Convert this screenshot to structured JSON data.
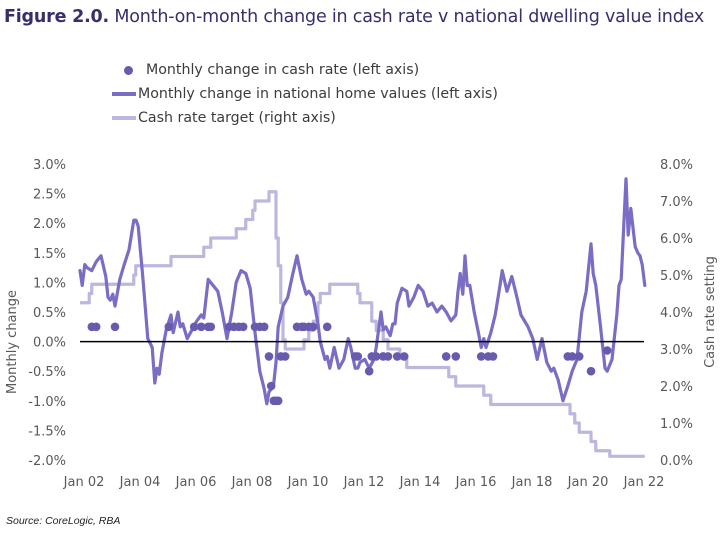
{
  "title": {
    "figure_label": "Figure 2.0.",
    "text": "Month-on-month change in cash rate v national dwelling value index"
  },
  "colors": {
    "title": "#3a2d6e",
    "cash_rate_change_dots": "#6a5aad",
    "home_values_line": "#7b6cc6",
    "cash_rate_target_line": "#bdb7df",
    "zero_line": "#000000",
    "axis_text": "#595959"
  },
  "legend": [
    {
      "key": "cash_rate_change",
      "label": "Monthly change in cash rate (left axis)",
      "marker": "dot"
    },
    {
      "key": "home_values",
      "label": "Monthly change in national home values (left axis)",
      "marker": "line"
    },
    {
      "key": "cash_rate_target",
      "label": "Cash rate target (right axis)",
      "marker": "line"
    }
  ],
  "source": "Source:  CoreLogic, RBA",
  "chart_data": {
    "type": "line",
    "title": "Month-on-month change in cash rate v national dwelling value index",
    "xlabel": "",
    "ylabel_left": "Monthly change",
    "ylabel_right": "Cash rate setting",
    "x_range": [
      2002.0,
      2022.0
    ],
    "x_ticks": [
      {
        "value": 2002,
        "label": "Jan 02"
      },
      {
        "value": 2004,
        "label": "Jan 04"
      },
      {
        "value": 2006,
        "label": "Jan 06"
      },
      {
        "value": 2008,
        "label": "Jan 08"
      },
      {
        "value": 2010,
        "label": "Jan 10"
      },
      {
        "value": 2012,
        "label": "Jan 12"
      },
      {
        "value": 2014,
        "label": "Jan 14"
      },
      {
        "value": 2016,
        "label": "Jan 16"
      },
      {
        "value": 2018,
        "label": "Jan 18"
      },
      {
        "value": 2020,
        "label": "Jan 20"
      },
      {
        "value": 2022,
        "label": "Jan 22"
      }
    ],
    "ylim_left": [
      -2.0,
      3.0
    ],
    "y_ticks_left": [
      "-2.0%",
      "-1.5%",
      "-1.0%",
      "-0.5%",
      "0.0%",
      "0.5%",
      "1.0%",
      "1.5%",
      "2.0%",
      "2.5%",
      "3.0%"
    ],
    "y_tick_values_left": [
      -2.0,
      -1.5,
      -1.0,
      -0.5,
      0.0,
      0.5,
      1.0,
      1.5,
      2.0,
      2.5,
      3.0
    ],
    "ylim_right": [
      0.0,
      8.0
    ],
    "y_ticks_right": [
      "0.0%",
      "1.0%",
      "2.0%",
      "3.0%",
      "4.0%",
      "5.0%",
      "6.0%",
      "7.0%",
      "8.0%"
    ],
    "y_tick_values_right": [
      0,
      1,
      2,
      3,
      4,
      5,
      6,
      7,
      8
    ],
    "grid": false,
    "zero_line": true,
    "legend_position": "top-center",
    "series": [
      {
        "name": "Monthly change in national home values (left axis)",
        "axis": "left",
        "type": "line",
        "points": [
          [
            2002.0,
            1.2
          ],
          [
            2002.08,
            0.95
          ],
          [
            2002.17,
            1.3
          ],
          [
            2002.25,
            1.25
          ],
          [
            2002.42,
            1.2
          ],
          [
            2002.58,
            1.35
          ],
          [
            2002.75,
            1.45
          ],
          [
            2002.92,
            1.1
          ],
          [
            2003.0,
            0.75
          ],
          [
            2003.08,
            0.7
          ],
          [
            2003.17,
            0.8
          ],
          [
            2003.25,
            0.6
          ],
          [
            2003.42,
            1.05
          ],
          [
            2003.58,
            1.3
          ],
          [
            2003.75,
            1.55
          ],
          [
            2003.92,
            2.05
          ],
          [
            2004.0,
            2.05
          ],
          [
            2004.08,
            1.95
          ],
          [
            2004.25,
            1.05
          ],
          [
            2004.42,
            0.05
          ],
          [
            2004.58,
            -0.1
          ],
          [
            2004.67,
            -0.7
          ],
          [
            2004.75,
            -0.45
          ],
          [
            2004.83,
            -0.55
          ],
          [
            2004.92,
            -0.2
          ],
          [
            2005.08,
            0.2
          ],
          [
            2005.25,
            0.45
          ],
          [
            2005.33,
            0.15
          ],
          [
            2005.5,
            0.5
          ],
          [
            2005.58,
            0.25
          ],
          [
            2005.67,
            0.3
          ],
          [
            2005.83,
            0.05
          ],
          [
            2006.0,
            0.2
          ],
          [
            2006.17,
            0.35
          ],
          [
            2006.33,
            0.45
          ],
          [
            2006.42,
            0.4
          ],
          [
            2006.58,
            1.05
          ],
          [
            2006.75,
            0.95
          ],
          [
            2006.92,
            0.85
          ],
          [
            2007.08,
            0.5
          ],
          [
            2007.25,
            0.05
          ],
          [
            2007.42,
            0.5
          ],
          [
            2007.58,
            1.0
          ],
          [
            2007.75,
            1.2
          ],
          [
            2007.92,
            1.15
          ],
          [
            2008.08,
            0.9
          ],
          [
            2008.25,
            0.15
          ],
          [
            2008.42,
            -0.5
          ],
          [
            2008.58,
            -0.8
          ],
          [
            2008.67,
            -1.05
          ],
          [
            2008.75,
            -0.85
          ],
          [
            2008.83,
            -0.8
          ],
          [
            2008.92,
            -0.7
          ],
          [
            2009.0,
            -0.35
          ],
          [
            2009.08,
            0.25
          ],
          [
            2009.25,
            0.6
          ],
          [
            2009.42,
            0.75
          ],
          [
            2009.58,
            1.1
          ],
          [
            2009.75,
            1.45
          ],
          [
            2009.92,
            1.05
          ],
          [
            2010.08,
            0.8
          ],
          [
            2010.17,
            0.85
          ],
          [
            2010.33,
            0.75
          ],
          [
            2010.5,
            0.3
          ],
          [
            2010.58,
            0.0
          ],
          [
            2010.75,
            -0.3
          ],
          [
            2010.83,
            -0.25
          ],
          [
            2010.92,
            -0.45
          ],
          [
            2011.08,
            -0.1
          ],
          [
            2011.25,
            -0.45
          ],
          [
            2011.42,
            -0.3
          ],
          [
            2011.58,
            0.05
          ],
          [
            2011.67,
            -0.1
          ],
          [
            2011.83,
            -0.45
          ],
          [
            2011.92,
            -0.45
          ],
          [
            2012.0,
            -0.35
          ],
          [
            2012.17,
            -0.3
          ],
          [
            2012.33,
            -0.45
          ],
          [
            2012.5,
            -0.3
          ],
          [
            2012.58,
            -0.1
          ],
          [
            2012.75,
            0.5
          ],
          [
            2012.83,
            0.2
          ],
          [
            2012.92,
            0.25
          ],
          [
            2013.08,
            0.1
          ],
          [
            2013.17,
            0.3
          ],
          [
            2013.25,
            0.3
          ],
          [
            2013.33,
            0.65
          ],
          [
            2013.5,
            0.9
          ],
          [
            2013.67,
            0.85
          ],
          [
            2013.75,
            0.6
          ],
          [
            2013.92,
            0.75
          ],
          [
            2014.08,
            0.95
          ],
          [
            2014.25,
            0.85
          ],
          [
            2014.42,
            0.6
          ],
          [
            2014.58,
            0.65
          ],
          [
            2014.75,
            0.5
          ],
          [
            2014.92,
            0.6
          ],
          [
            2015.08,
            0.5
          ],
          [
            2015.25,
            0.35
          ],
          [
            2015.42,
            0.45
          ],
          [
            2015.5,
            0.85
          ],
          [
            2015.58,
            1.15
          ],
          [
            2015.67,
            0.8
          ],
          [
            2015.75,
            1.45
          ],
          [
            2015.83,
            0.95
          ],
          [
            2015.92,
            0.95
          ],
          [
            2016.08,
            0.5
          ],
          [
            2016.25,
            0.1
          ],
          [
            2016.33,
            -0.1
          ],
          [
            2016.42,
            0.05
          ],
          [
            2016.5,
            -0.1
          ],
          [
            2016.67,
            0.15
          ],
          [
            2016.83,
            0.45
          ],
          [
            2017.0,
            0.95
          ],
          [
            2017.08,
            1.2
          ],
          [
            2017.25,
            0.85
          ],
          [
            2017.42,
            1.1
          ],
          [
            2017.58,
            0.8
          ],
          [
            2017.75,
            0.45
          ],
          [
            2018.0,
            0.25
          ],
          [
            2018.17,
            0.05
          ],
          [
            2018.33,
            -0.3
          ],
          [
            2018.5,
            0.05
          ],
          [
            2018.67,
            -0.35
          ],
          [
            2018.83,
            -0.5
          ],
          [
            2018.92,
            -0.45
          ],
          [
            2019.08,
            -0.65
          ],
          [
            2019.25,
            -1.0
          ],
          [
            2019.42,
            -0.75
          ],
          [
            2019.58,
            -0.5
          ],
          [
            2019.75,
            -0.3
          ],
          [
            2019.92,
            0.5
          ],
          [
            2020.08,
            0.85
          ],
          [
            2020.25,
            1.65
          ],
          [
            2020.33,
            1.15
          ],
          [
            2020.42,
            0.95
          ],
          [
            2020.58,
            0.3
          ],
          [
            2020.75,
            -0.45
          ],
          [
            2020.83,
            -0.5
          ],
          [
            2021.0,
            -0.3
          ],
          [
            2021.17,
            0.45
          ],
          [
            2021.25,
            0.95
          ],
          [
            2021.33,
            1.05
          ],
          [
            2021.5,
            2.75
          ],
          [
            2021.58,
            1.8
          ],
          [
            2021.67,
            2.25
          ],
          [
            2021.83,
            1.6
          ],
          [
            2021.92,
            1.5
          ],
          [
            2022.0,
            1.45
          ],
          [
            2022.08,
            1.3
          ],
          [
            2022.17,
            0.95
          ]
        ]
      },
      {
        "name": "Cash rate target (right axis)",
        "axis": "right",
        "type": "step",
        "points": [
          [
            2002.0,
            4.25
          ],
          [
            2002.33,
            4.5
          ],
          [
            2002.42,
            4.75
          ],
          [
            2003.92,
            5.0
          ],
          [
            2003.99,
            5.25
          ],
          [
            2005.25,
            5.5
          ],
          [
            2006.42,
            5.75
          ],
          [
            2006.67,
            6.0
          ],
          [
            2007.58,
            6.25
          ],
          [
            2007.92,
            6.5
          ],
          [
            2008.17,
            6.75
          ],
          [
            2008.25,
            7.0
          ],
          [
            2008.75,
            7.25
          ],
          [
            2009.0,
            6.0
          ],
          [
            2009.08,
            5.25
          ],
          [
            2009.17,
            4.25
          ],
          [
            2009.25,
            3.25
          ],
          [
            2009.33,
            3.0
          ],
          [
            2010.0,
            3.25
          ],
          [
            2010.17,
            3.5
          ],
          [
            2010.33,
            3.75
          ],
          [
            2010.5,
            4.25
          ],
          [
            2010.58,
            4.5
          ],
          [
            2010.92,
            4.75
          ],
          [
            2011.92,
            4.5
          ],
          [
            2012.0,
            4.25
          ],
          [
            2012.42,
            3.75
          ],
          [
            2012.58,
            3.5
          ],
          [
            2012.83,
            3.25
          ],
          [
            2013.0,
            3.0
          ],
          [
            2013.42,
            2.75
          ],
          [
            2013.67,
            2.5
          ],
          [
            2015.17,
            2.25
          ],
          [
            2015.42,
            2.0
          ],
          [
            2016.42,
            1.75
          ],
          [
            2016.67,
            1.5
          ],
          [
            2019.5,
            1.25
          ],
          [
            2019.67,
            1.0
          ],
          [
            2019.83,
            0.75
          ],
          [
            2020.25,
            0.5
          ],
          [
            2020.42,
            0.25
          ],
          [
            2020.92,
            0.1
          ],
          [
            2022.17,
            0.1
          ]
        ]
      },
      {
        "name": "Monthly change in cash rate (left axis)",
        "axis": "left",
        "type": "scatter",
        "points": [
          [
            2002.42,
            0.25
          ],
          [
            2002.58,
            0.25
          ],
          [
            2003.25,
            0.25
          ],
          [
            2005.17,
            0.25
          ],
          [
            2006.08,
            0.25
          ],
          [
            2006.33,
            0.25
          ],
          [
            2006.58,
            0.25
          ],
          [
            2006.67,
            0.25
          ],
          [
            2007.33,
            0.25
          ],
          [
            2007.5,
            0.25
          ],
          [
            2007.67,
            0.25
          ],
          [
            2007.83,
            0.25
          ],
          [
            2008.25,
            0.25
          ],
          [
            2008.42,
            0.25
          ],
          [
            2008.58,
            0.25
          ],
          [
            2008.75,
            -0.25
          ],
          [
            2008.83,
            -0.75
          ],
          [
            2008.92,
            -1.0
          ],
          [
            2009.0,
            -1.0
          ],
          [
            2009.08,
            -1.0
          ],
          [
            2009.17,
            -0.25
          ],
          [
            2009.33,
            -0.25
          ],
          [
            2009.75,
            0.25
          ],
          [
            2009.92,
            0.25
          ],
          [
            2010.0,
            0.25
          ],
          [
            2010.17,
            0.25
          ],
          [
            2010.33,
            0.25
          ],
          [
            2010.83,
            0.25
          ],
          [
            2011.83,
            -0.25
          ],
          [
            2011.92,
            -0.25
          ],
          [
            2012.33,
            -0.5
          ],
          [
            2012.42,
            -0.25
          ],
          [
            2012.58,
            -0.25
          ],
          [
            2012.83,
            -0.25
          ],
          [
            2013.0,
            -0.25
          ],
          [
            2013.33,
            -0.25
          ],
          [
            2013.58,
            -0.25
          ],
          [
            2015.08,
            -0.25
          ],
          [
            2015.42,
            -0.25
          ],
          [
            2016.33,
            -0.25
          ],
          [
            2016.58,
            -0.25
          ],
          [
            2016.75,
            -0.25
          ],
          [
            2019.42,
            -0.25
          ],
          [
            2019.58,
            -0.25
          ],
          [
            2019.83,
            -0.25
          ],
          [
            2020.25,
            -0.5
          ],
          [
            2020.83,
            -0.15
          ]
        ]
      }
    ]
  }
}
